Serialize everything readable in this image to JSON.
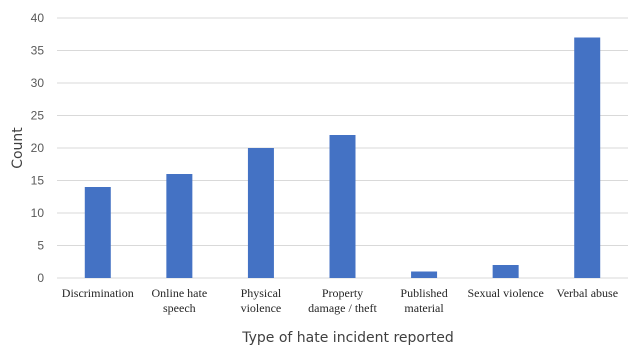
{
  "chart_data": {
    "type": "bar",
    "categories": [
      [
        "Discrimination"
      ],
      [
        "Online hate",
        "speech"
      ],
      [
        "Physical",
        "violence"
      ],
      [
        "Property",
        "damage / theft"
      ],
      [
        "Published",
        "material"
      ],
      [
        "Sexual violence"
      ],
      [
        "Verbal abuse"
      ]
    ],
    "values": [
      14,
      16,
      20,
      22,
      1,
      2,
      37
    ],
    "xlabel": "Type of hate incident reported",
    "ylabel": "Count",
    "ylim": [
      0,
      40
    ],
    "yticks": [
      0,
      5,
      10,
      15,
      20,
      25,
      30,
      35,
      40
    ],
    "grid": true,
    "legend": "none",
    "bar_color": "#4472C4",
    "grid_color": "#D9D9D9"
  }
}
